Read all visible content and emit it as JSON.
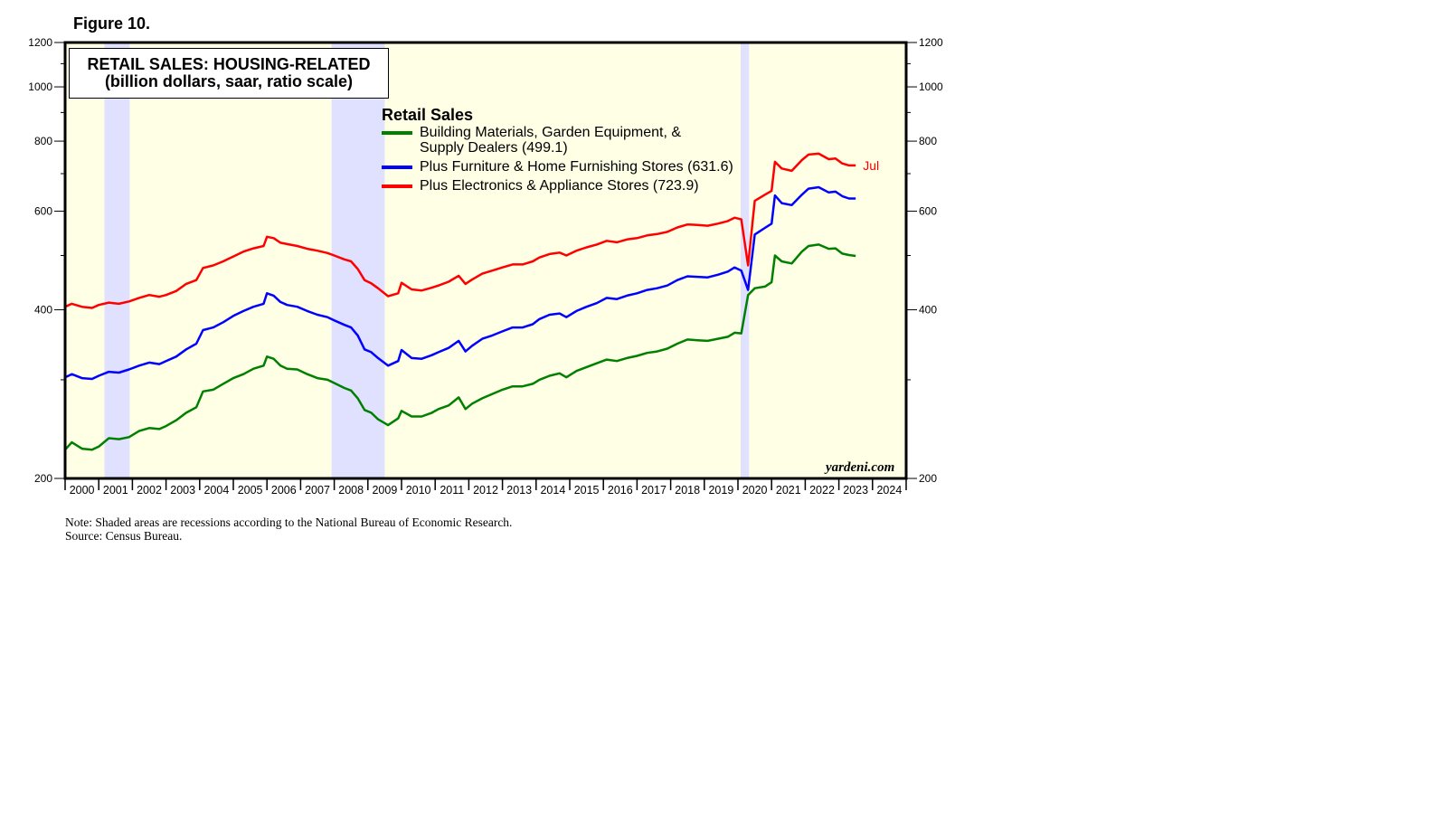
{
  "figure_label": "Figure 10.",
  "notes": {
    "note": "Note: Shaded areas are recessions according to the National Bureau of Economic Research.",
    "source": "Source: Census Bureau."
  },
  "source_mark": "yardeni.com",
  "chart_data": {
    "type": "line",
    "title": "RETAIL SALES: HOUSING-RELATED",
    "subtitle": "(billion dollars, saar, ratio scale)",
    "legend_title": "Retail Sales",
    "legend_placement": "top-center",
    "y_scale": "log",
    "ylim": [
      200,
      1200
    ],
    "y_ticks": [
      200,
      400,
      600,
      800,
      1000,
      1200
    ],
    "y_minor_ticks": [
      300,
      500,
      700,
      900,
      1100
    ],
    "xlim": [
      2000,
      2025
    ],
    "x_tick_labels": [
      "2000",
      "2001",
      "2002",
      "2003",
      "2004",
      "2005",
      "2006",
      "2007",
      "2008",
      "2009",
      "2010",
      "2011",
      "2012",
      "2013",
      "2014",
      "2015",
      "2016",
      "2017",
      "2018",
      "2019",
      "2020",
      "2021",
      "2022",
      "2023",
      "2024"
    ],
    "plot_background": "#ffffe6",
    "recession_color": "#e0e0ff",
    "recessions": [
      [
        2001.17,
        2001.92
      ],
      [
        2007.92,
        2009.5
      ],
      [
        2020.08,
        2020.33
      ]
    ],
    "end_annotation": "Jul",
    "series": [
      {
        "name": "Building Materials, Garden Equipment, & Supply Dealers (499.1)",
        "color": "#008000",
        "points": [
          [
            2000.0,
            225
          ],
          [
            2000.2,
            232
          ],
          [
            2000.5,
            226
          ],
          [
            2000.8,
            225
          ],
          [
            2001.0,
            228
          ],
          [
            2001.3,
            236
          ],
          [
            2001.6,
            235
          ],
          [
            2001.9,
            237
          ],
          [
            2002.2,
            243
          ],
          [
            2002.5,
            246
          ],
          [
            2002.8,
            245
          ],
          [
            2003.0,
            248
          ],
          [
            2003.3,
            254
          ],
          [
            2003.6,
            262
          ],
          [
            2003.9,
            268
          ],
          [
            2004.1,
            286
          ],
          [
            2004.4,
            288
          ],
          [
            2004.7,
            295
          ],
          [
            2005.0,
            302
          ],
          [
            2005.3,
            307
          ],
          [
            2005.6,
            314
          ],
          [
            2005.9,
            318
          ],
          [
            2006.0,
            330
          ],
          [
            2006.2,
            327
          ],
          [
            2006.4,
            318
          ],
          [
            2006.6,
            314
          ],
          [
            2006.9,
            313
          ],
          [
            2007.2,
            307
          ],
          [
            2007.5,
            302
          ],
          [
            2007.8,
            300
          ],
          [
            2008.0,
            296
          ],
          [
            2008.3,
            290
          ],
          [
            2008.5,
            287
          ],
          [
            2008.7,
            278
          ],
          [
            2008.9,
            265
          ],
          [
            2009.1,
            262
          ],
          [
            2009.3,
            255
          ],
          [
            2009.6,
            249
          ],
          [
            2009.9,
            256
          ],
          [
            2010.0,
            264
          ],
          [
            2010.3,
            258
          ],
          [
            2010.6,
            258
          ],
          [
            2010.9,
            262
          ],
          [
            2011.1,
            266
          ],
          [
            2011.4,
            270
          ],
          [
            2011.7,
            279
          ],
          [
            2011.9,
            266
          ],
          [
            2012.1,
            272
          ],
          [
            2012.4,
            278
          ],
          [
            2012.7,
            283
          ],
          [
            2013.0,
            288
          ],
          [
            2013.3,
            292
          ],
          [
            2013.6,
            292
          ],
          [
            2013.9,
            295
          ],
          [
            2014.1,
            300
          ],
          [
            2014.4,
            305
          ],
          [
            2014.7,
            308
          ],
          [
            2014.9,
            303
          ],
          [
            2015.2,
            311
          ],
          [
            2015.5,
            316
          ],
          [
            2015.8,
            321
          ],
          [
            2016.1,
            326
          ],
          [
            2016.4,
            324
          ],
          [
            2016.7,
            328
          ],
          [
            2017.0,
            331
          ],
          [
            2017.3,
            335
          ],
          [
            2017.6,
            337
          ],
          [
            2017.9,
            341
          ],
          [
            2018.2,
            348
          ],
          [
            2018.5,
            354
          ],
          [
            2018.8,
            353
          ],
          [
            2019.1,
            352
          ],
          [
            2019.4,
            355
          ],
          [
            2019.7,
            358
          ],
          [
            2019.9,
            364
          ],
          [
            2020.1,
            363
          ],
          [
            2020.3,
            425
          ],
          [
            2020.5,
            437
          ],
          [
            2020.8,
            440
          ],
          [
            2021.0,
            448
          ],
          [
            2021.1,
            500
          ],
          [
            2021.3,
            488
          ],
          [
            2021.6,
            484
          ],
          [
            2021.9,
            508
          ],
          [
            2022.1,
            520
          ],
          [
            2022.4,
            523
          ],
          [
            2022.7,
            514
          ],
          [
            2022.9,
            515
          ],
          [
            2023.1,
            504
          ],
          [
            2023.3,
            501
          ],
          [
            2023.5,
            499
          ]
        ]
      },
      {
        "name": "Plus Furniture & Home Furnishing Stores (631.6)",
        "color": "#0000ff",
        "points": [
          [
            2000.0,
            303
          ],
          [
            2000.2,
            307
          ],
          [
            2000.5,
            302
          ],
          [
            2000.8,
            301
          ],
          [
            2001.0,
            305
          ],
          [
            2001.3,
            310
          ],
          [
            2001.6,
            309
          ],
          [
            2001.9,
            313
          ],
          [
            2002.2,
            318
          ],
          [
            2002.5,
            322
          ],
          [
            2002.8,
            320
          ],
          [
            2003.0,
            324
          ],
          [
            2003.3,
            330
          ],
          [
            2003.6,
            340
          ],
          [
            2003.9,
            348
          ],
          [
            2004.1,
            368
          ],
          [
            2004.4,
            372
          ],
          [
            2004.7,
            380
          ],
          [
            2005.0,
            390
          ],
          [
            2005.3,
            398
          ],
          [
            2005.6,
            405
          ],
          [
            2005.9,
            410
          ],
          [
            2006.0,
            428
          ],
          [
            2006.2,
            424
          ],
          [
            2006.4,
            413
          ],
          [
            2006.6,
            408
          ],
          [
            2006.9,
            405
          ],
          [
            2007.2,
            398
          ],
          [
            2007.5,
            392
          ],
          [
            2007.8,
            388
          ],
          [
            2008.0,
            383
          ],
          [
            2008.3,
            376
          ],
          [
            2008.5,
            372
          ],
          [
            2008.7,
            360
          ],
          [
            2008.9,
            340
          ],
          [
            2009.1,
            336
          ],
          [
            2009.3,
            328
          ],
          [
            2009.6,
            318
          ],
          [
            2009.9,
            324
          ],
          [
            2010.0,
            339
          ],
          [
            2010.3,
            328
          ],
          [
            2010.6,
            327
          ],
          [
            2010.9,
            332
          ],
          [
            2011.1,
            336
          ],
          [
            2011.4,
            342
          ],
          [
            2011.7,
            352
          ],
          [
            2011.9,
            337
          ],
          [
            2012.1,
            345
          ],
          [
            2012.4,
            355
          ],
          [
            2012.7,
            360
          ],
          [
            2013.0,
            366
          ],
          [
            2013.3,
            372
          ],
          [
            2013.6,
            372
          ],
          [
            2013.9,
            377
          ],
          [
            2014.1,
            385
          ],
          [
            2014.4,
            392
          ],
          [
            2014.7,
            394
          ],
          [
            2014.9,
            388
          ],
          [
            2015.2,
            398
          ],
          [
            2015.5,
            405
          ],
          [
            2015.8,
            411
          ],
          [
            2016.1,
            420
          ],
          [
            2016.4,
            418
          ],
          [
            2016.7,
            424
          ],
          [
            2017.0,
            428
          ],
          [
            2017.3,
            434
          ],
          [
            2017.6,
            437
          ],
          [
            2017.9,
            442
          ],
          [
            2018.2,
            452
          ],
          [
            2018.5,
            459
          ],
          [
            2018.8,
            458
          ],
          [
            2019.1,
            457
          ],
          [
            2019.4,
            462
          ],
          [
            2019.7,
            468
          ],
          [
            2019.9,
            476
          ],
          [
            2020.1,
            470
          ],
          [
            2020.3,
            434
          ],
          [
            2020.5,
            545
          ],
          [
            2020.8,
            560
          ],
          [
            2021.0,
            570
          ],
          [
            2021.1,
            640
          ],
          [
            2021.3,
            620
          ],
          [
            2021.6,
            615
          ],
          [
            2021.9,
            642
          ],
          [
            2022.1,
            658
          ],
          [
            2022.4,
            662
          ],
          [
            2022.7,
            648
          ],
          [
            2022.9,
            650
          ],
          [
            2023.1,
            638
          ],
          [
            2023.3,
            632
          ],
          [
            2023.5,
            632
          ]
        ]
      },
      {
        "name": "Plus Electronics & Appliance Stores (723.9)",
        "color": "#ff0000",
        "points": [
          [
            2000.0,
            405
          ],
          [
            2000.2,
            410
          ],
          [
            2000.5,
            405
          ],
          [
            2000.8,
            403
          ],
          [
            2001.0,
            408
          ],
          [
            2001.3,
            412
          ],
          [
            2001.6,
            410
          ],
          [
            2001.9,
            414
          ],
          [
            2002.2,
            420
          ],
          [
            2002.5,
            425
          ],
          [
            2002.8,
            422
          ],
          [
            2003.0,
            425
          ],
          [
            2003.3,
            432
          ],
          [
            2003.6,
            445
          ],
          [
            2003.9,
            452
          ],
          [
            2004.1,
            475
          ],
          [
            2004.4,
            480
          ],
          [
            2004.7,
            488
          ],
          [
            2005.0,
            498
          ],
          [
            2005.3,
            508
          ],
          [
            2005.6,
            515
          ],
          [
            2005.9,
            520
          ],
          [
            2006.0,
            540
          ],
          [
            2006.2,
            537
          ],
          [
            2006.4,
            527
          ],
          [
            2006.6,
            524
          ],
          [
            2006.9,
            520
          ],
          [
            2007.2,
            514
          ],
          [
            2007.5,
            510
          ],
          [
            2007.8,
            505
          ],
          [
            2008.0,
            500
          ],
          [
            2008.3,
            492
          ],
          [
            2008.5,
            488
          ],
          [
            2008.7,
            473
          ],
          [
            2008.9,
            452
          ],
          [
            2009.1,
            446
          ],
          [
            2009.3,
            437
          ],
          [
            2009.6,
            423
          ],
          [
            2009.9,
            428
          ],
          [
            2010.0,
            447
          ],
          [
            2010.3,
            435
          ],
          [
            2010.6,
            433
          ],
          [
            2010.9,
            438
          ],
          [
            2011.1,
            442
          ],
          [
            2011.4,
            449
          ],
          [
            2011.7,
            460
          ],
          [
            2011.9,
            445
          ],
          [
            2012.1,
            453
          ],
          [
            2012.4,
            464
          ],
          [
            2012.7,
            470
          ],
          [
            2013.0,
            476
          ],
          [
            2013.3,
            482
          ],
          [
            2013.6,
            482
          ],
          [
            2013.9,
            488
          ],
          [
            2014.1,
            496
          ],
          [
            2014.4,
            503
          ],
          [
            2014.7,
            506
          ],
          [
            2014.9,
            500
          ],
          [
            2015.2,
            510
          ],
          [
            2015.5,
            517
          ],
          [
            2015.8,
            523
          ],
          [
            2016.1,
            531
          ],
          [
            2016.4,
            528
          ],
          [
            2016.7,
            534
          ],
          [
            2017.0,
            537
          ],
          [
            2017.3,
            543
          ],
          [
            2017.6,
            546
          ],
          [
            2017.9,
            551
          ],
          [
            2018.2,
            561
          ],
          [
            2018.5,
            568
          ],
          [
            2018.8,
            567
          ],
          [
            2019.1,
            565
          ],
          [
            2019.4,
            570
          ],
          [
            2019.7,
            576
          ],
          [
            2019.9,
            584
          ],
          [
            2020.1,
            580
          ],
          [
            2020.3,
            480
          ],
          [
            2020.5,
            626
          ],
          [
            2020.8,
            642
          ],
          [
            2021.0,
            652
          ],
          [
            2021.1,
            735
          ],
          [
            2021.3,
            715
          ],
          [
            2021.6,
            708
          ],
          [
            2021.9,
            740
          ],
          [
            2022.1,
            757
          ],
          [
            2022.4,
            760
          ],
          [
            2022.7,
            743
          ],
          [
            2022.9,
            745
          ],
          [
            2023.1,
            730
          ],
          [
            2023.3,
            724
          ],
          [
            2023.5,
            724
          ]
        ]
      }
    ]
  }
}
